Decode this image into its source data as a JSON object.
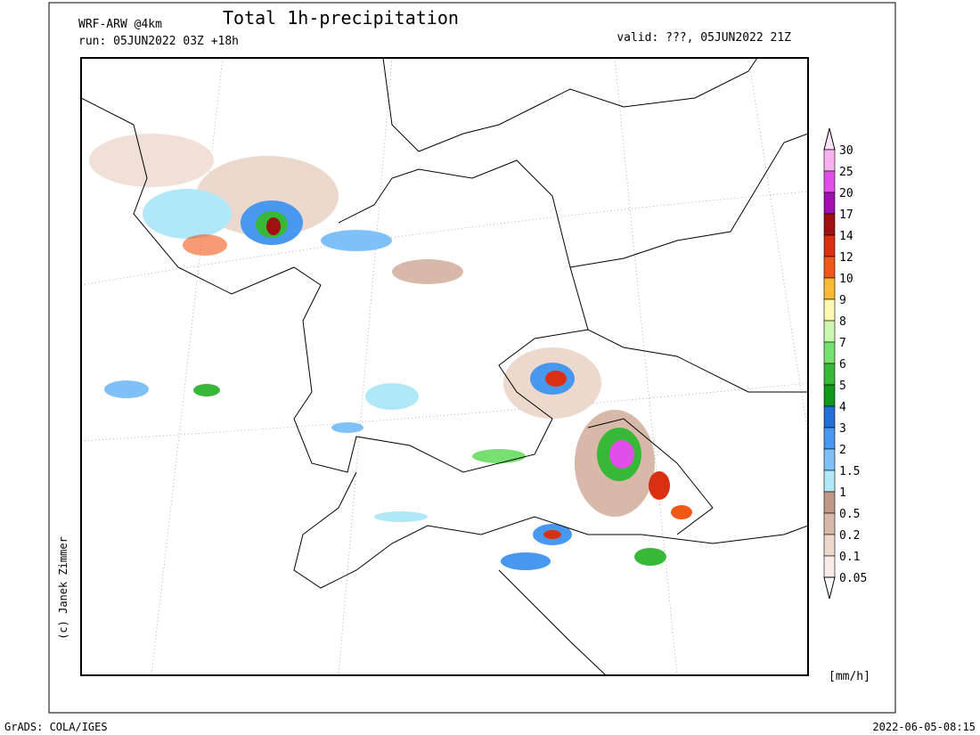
{
  "header": {
    "model": "WRF-ARW @4km",
    "title": "Total 1h-precipitation",
    "run": "run: 05JUN2022 03Z +18h",
    "valid": "valid: ???, 05JUN2022 21Z"
  },
  "colorbar": {
    "labels": [
      "30",
      "25",
      "20",
      "17",
      "14",
      "12",
      "10",
      "9",
      "8",
      "7",
      "6",
      "5",
      "4",
      "3",
      "2",
      "1.5",
      "1",
      "0.5",
      "0.2",
      "0.1",
      "0.05"
    ],
    "colors": [
      "#fde0fa",
      "#f8b0f0",
      "#e050e8",
      "#a010b0",
      "#a01010",
      "#d83010",
      "#f05818",
      "#f8b838",
      "#fff8b0",
      "#c8f8b0",
      "#78e070",
      "#38b838",
      "#109818",
      "#2070d8",
      "#4898f0",
      "#80c0f8",
      "#b0e8f8",
      "#c09888",
      "#d8b8a8",
      "#ecd8cc",
      "#f8ece4",
      "#ffffff"
    ],
    "unit": "[mm/h]"
  },
  "copyright": "(c) Janek Zimmer",
  "footer": {
    "left": "GrADS: COLA/IGES",
    "right": "2022-06-05-08:15"
  }
}
